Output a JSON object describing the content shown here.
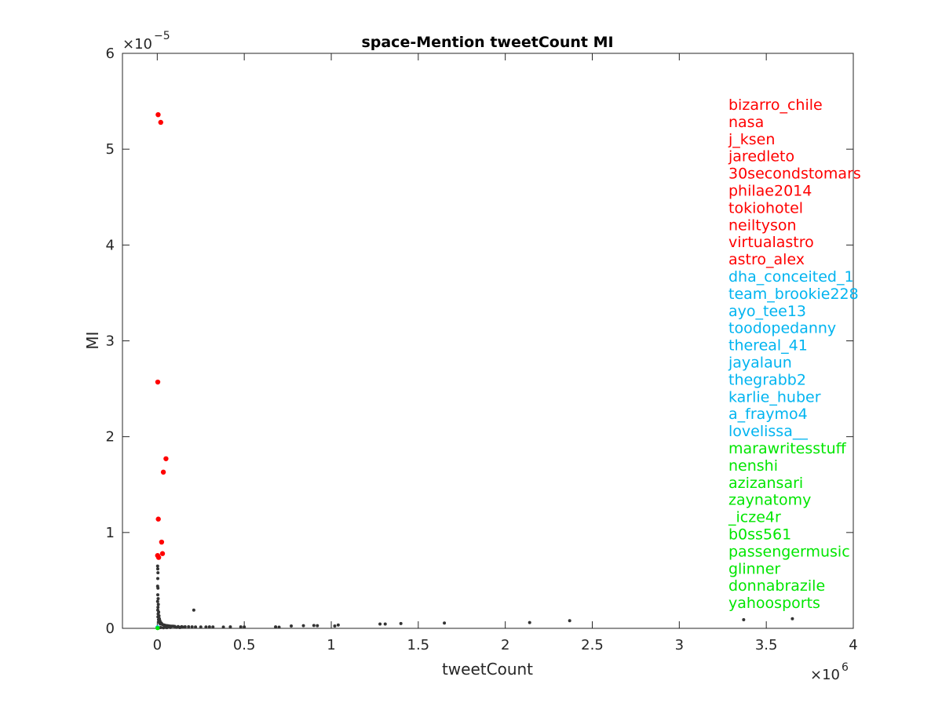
{
  "chart_data": {
    "type": "scatter",
    "title": "space-Mention tweetCount MI",
    "xlabel": "tweetCount",
    "ylabel": "MI",
    "x_multiplier_label": "×10",
    "x_multiplier_exp": "6",
    "y_multiplier_label": "×10",
    "y_multiplier_exp": "−5",
    "xlim": [
      -0.2,
      4
    ],
    "ylim": [
      0,
      6
    ],
    "xticks": [
      0,
      0.5,
      1,
      1.5,
      2,
      2.5,
      3,
      3.5,
      4
    ],
    "xtick_labels": [
      "0",
      "0.5",
      "1",
      "1.5",
      "2",
      "2.5",
      "3",
      "3.5",
      "4"
    ],
    "yticks": [
      0,
      1,
      2,
      3,
      4,
      5,
      6
    ],
    "ytick_labels": [
      "0",
      "1",
      "2",
      "3",
      "4",
      "5",
      "6"
    ],
    "grid": false,
    "colors": {
      "red": "#ff0000",
      "blue": "#00b4f0",
      "green": "#00e600",
      "gray": "#333333"
    },
    "series": [
      {
        "group": "red",
        "color": "#ff0000",
        "points": [
          [
            0.005,
            5.36
          ],
          [
            0.02,
            5.28
          ],
          [
            0.003,
            2.57
          ],
          [
            0.05,
            1.77
          ],
          [
            0.035,
            1.63
          ],
          [
            0.006,
            1.14
          ],
          [
            0.025,
            0.9
          ],
          [
            0.03,
            0.78
          ],
          [
            0.002,
            0.76
          ],
          [
            0.008,
            0.74
          ]
        ]
      },
      {
        "group": "blue",
        "color": "#00b4f0",
        "points": [
          [
            0.001,
            0.01
          ],
          [
            0.0012,
            0.012
          ],
          [
            0.0015,
            0.01
          ],
          [
            0.001,
            0.011
          ],
          [
            0.002,
            0.01
          ],
          [
            0.0011,
            0.009
          ],
          [
            0.0013,
            0.01
          ],
          [
            0.0016,
            0.011
          ],
          [
            0.0018,
            0.012
          ],
          [
            0.0014,
            0.01
          ]
        ]
      },
      {
        "group": "green",
        "color": "#00e600",
        "points": [
          [
            0.001,
            0.002
          ],
          [
            0.0012,
            0.003
          ],
          [
            0.0014,
            0.002
          ],
          [
            0.0016,
            0.003
          ],
          [
            0.0018,
            0.002
          ],
          [
            0.002,
            0.003
          ],
          [
            0.0022,
            0.002
          ],
          [
            0.0024,
            0.002
          ],
          [
            0.0026,
            0.003
          ],
          [
            0.0028,
            0.002
          ]
        ]
      },
      {
        "group": "gray",
        "color": "#333333",
        "points": [
          [
            0.002,
            0.65
          ],
          [
            0.003,
            0.62
          ],
          [
            0.004,
            0.58
          ],
          [
            0.003,
            0.52
          ],
          [
            0.002,
            0.44
          ],
          [
            0.004,
            0.42
          ],
          [
            0.003,
            0.35
          ],
          [
            0.005,
            0.31
          ],
          [
            0.002,
            0.28
          ],
          [
            0.006,
            0.25
          ],
          [
            0.004,
            0.22
          ],
          [
            0.003,
            0.19
          ],
          [
            0.008,
            0.17
          ],
          [
            0.005,
            0.15
          ],
          [
            0.01,
            0.13
          ],
          [
            0.004,
            0.12
          ],
          [
            0.012,
            0.1
          ],
          [
            0.007,
            0.09
          ],
          [
            0.015,
            0.08
          ],
          [
            0.009,
            0.07
          ],
          [
            0.02,
            0.06
          ],
          [
            0.013,
            0.055
          ],
          [
            0.025,
            0.05
          ],
          [
            0.018,
            0.045
          ],
          [
            0.03,
            0.04
          ],
          [
            0.04,
            0.035
          ],
          [
            0.05,
            0.03
          ],
          [
            0.06,
            0.028
          ],
          [
            0.07,
            0.025
          ],
          [
            0.08,
            0.023
          ],
          [
            0.09,
            0.022
          ],
          [
            0.1,
            0.02
          ],
          [
            0.12,
            0.018
          ],
          [
            0.14,
            0.017
          ],
          [
            0.16,
            0.016
          ],
          [
            0.18,
            0.016
          ],
          [
            0.2,
            0.015
          ],
          [
            0.22,
            0.014
          ],
          [
            0.25,
            0.014
          ],
          [
            0.28,
            0.014
          ],
          [
            0.3,
            0.015
          ],
          [
            0.32,
            0.014
          ],
          [
            0.38,
            0.013
          ],
          [
            0.42,
            0.015
          ],
          [
            0.48,
            0.015
          ],
          [
            0.5,
            0.014
          ],
          [
            0.21,
            0.19
          ],
          [
            0.68,
            0.015
          ],
          [
            0.7,
            0.012
          ],
          [
            0.77,
            0.025
          ],
          [
            0.84,
            0.028
          ],
          [
            0.9,
            0.03
          ],
          [
            0.92,
            0.028
          ],
          [
            1.02,
            0.025
          ],
          [
            1.04,
            0.035
          ],
          [
            1.28,
            0.045
          ],
          [
            1.31,
            0.045
          ],
          [
            1.4,
            0.05
          ],
          [
            1.65,
            0.055
          ],
          [
            2.14,
            0.06
          ],
          [
            2.37,
            0.08
          ],
          [
            3.37,
            0.09
          ],
          [
            3.65,
            0.1
          ],
          [
            0.01,
            0.005
          ],
          [
            0.02,
            0.008
          ],
          [
            0.035,
            0.006
          ],
          [
            0.045,
            0.01
          ],
          [
            0.055,
            0.007
          ],
          [
            0.065,
            0.012
          ],
          [
            0.075,
            0.009
          ],
          [
            0.11,
            0.01
          ],
          [
            0.13,
            0.008
          ],
          [
            0.15,
            0.012
          ]
        ]
      }
    ],
    "labels": [
      {
        "text": "bizarro_chile",
        "group": "red"
      },
      {
        "text": "nasa",
        "group": "red"
      },
      {
        "text": "j_ksen",
        "group": "red"
      },
      {
        "text": "jaredleto",
        "group": "red"
      },
      {
        "text": "30secondstomars",
        "group": "red"
      },
      {
        "text": "philae2014",
        "group": "red"
      },
      {
        "text": "tokiohotel",
        "group": "red"
      },
      {
        "text": "neiltyson",
        "group": "red"
      },
      {
        "text": "virtualastro",
        "group": "red"
      },
      {
        "text": "astro_alex",
        "group": "red"
      },
      {
        "text": "dha_conceited_1",
        "group": "blue"
      },
      {
        "text": "team_brookie228",
        "group": "blue"
      },
      {
        "text": "ayo_tee13",
        "group": "blue"
      },
      {
        "text": "toodopedanny",
        "group": "blue"
      },
      {
        "text": "thereal_41",
        "group": "blue"
      },
      {
        "text": "jayalaun",
        "group": "blue"
      },
      {
        "text": "thegrabb2",
        "group": "blue"
      },
      {
        "text": "karlie_huber",
        "group": "blue"
      },
      {
        "text": "a_fraymo4",
        "group": "blue"
      },
      {
        "text": "lovelissa__",
        "group": "blue"
      },
      {
        "text": "marawritesstuff",
        "group": "green"
      },
      {
        "text": "nenshi",
        "group": "green"
      },
      {
        "text": "azizansari",
        "group": "green"
      },
      {
        "text": "zaynatomy",
        "group": "green"
      },
      {
        "text": "_icze4r",
        "group": "green"
      },
      {
        "text": "b0ss561",
        "group": "green"
      },
      {
        "text": "passengermusic",
        "group": "green"
      },
      {
        "text": "glinner",
        "group": "green"
      },
      {
        "text": "donnabrazile",
        "group": "green"
      },
      {
        "text": "yahoosports",
        "group": "green"
      }
    ]
  }
}
